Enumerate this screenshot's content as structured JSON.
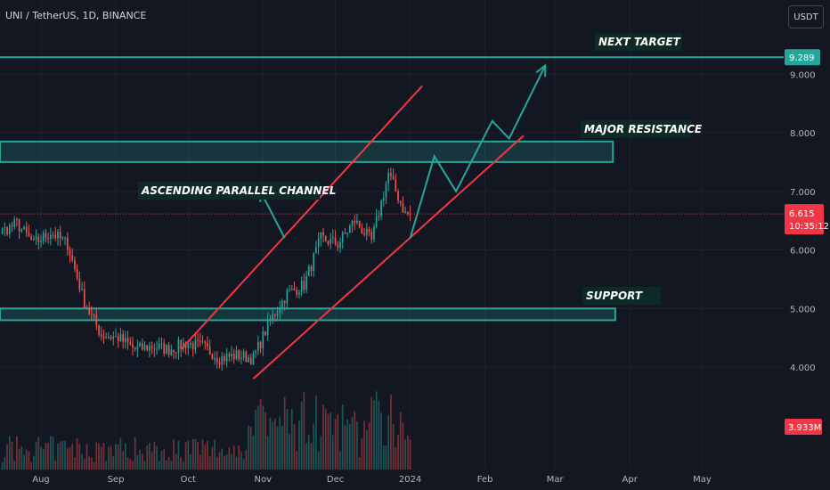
{
  "header": {
    "symbol_title": "UNI / TetherUS, 1D, BINANCE",
    "currency_button": "USDT"
  },
  "colors": {
    "background": "#131722",
    "up": "#26a69a",
    "down": "#ef5350",
    "zone": "#26a69a",
    "channel": "#f23645",
    "projection": "#26a69a"
  },
  "price_axis": {
    "ticks": [
      "9.000",
      "8.000",
      "7.000",
      "6.000",
      "5.000",
      "4.000"
    ],
    "target_label": "9.289",
    "last_price_label": "6.615",
    "countdown_label": "10:35:12",
    "volume_label": "3.933M"
  },
  "time_axis": {
    "labels": [
      "Aug",
      "Sep",
      "Oct",
      "Nov",
      "Dec",
      "2024",
      "Feb",
      "Mar",
      "Apr",
      "May"
    ]
  },
  "annotations": {
    "next_target": "NEXT TARGET",
    "major_resistance": "MAJOR RESISTANCE",
    "ascending_channel": "ASCENDING PARALLEL CHANNEL",
    "support": "SUPPORT"
  },
  "chart_data": {
    "type": "candlestick",
    "symbol": "UNI / TetherUS",
    "interval": "1D",
    "exchange": "BINANCE",
    "quote_currency": "USDT",
    "ylim": [
      3.3,
      9.8
    ],
    "last_price": 6.615,
    "last_volume": "3.933M",
    "levels": [
      {
        "label": "NEXT TARGET",
        "price": 9.289
      },
      {
        "label": "MAJOR RESISTANCE",
        "range": [
          7.5,
          7.85
        ]
      },
      {
        "label": "SUPPORT",
        "range": [
          4.8,
          5.0
        ]
      }
    ],
    "channel": {
      "upper": [
        [
          "2023-09-28",
          4.3
        ],
        [
          "2024-01-06",
          8.8
        ]
      ],
      "lower": [
        [
          "2023-10-28",
          3.8
        ],
        [
          "2024-02-17",
          7.95
        ]
      ]
    },
    "projection_path": [
      [
        "2024-01-01",
        6.2
      ],
      [
        "2024-01-11",
        7.6
      ],
      [
        "2024-01-20",
        7.0
      ],
      [
        "2024-02-04",
        8.2
      ],
      [
        "2024-02-11",
        7.9
      ],
      [
        "2024-02-26",
        9.15
      ]
    ],
    "weekly_closes": [
      {
        "date": "2023-07-01",
        "close": 6.1
      },
      {
        "date": "2023-07-08",
        "close": 5.95
      },
      {
        "date": "2023-07-15",
        "close": 6.3
      },
      {
        "date": "2023-07-22",
        "close": 6.45
      },
      {
        "date": "2023-07-29",
        "close": 6.1
      },
      {
        "date": "2023-08-05",
        "close": 6.3
      },
      {
        "date": "2023-08-12",
        "close": 6.1
      },
      {
        "date": "2023-08-19",
        "close": 5.1
      },
      {
        "date": "2023-08-26",
        "close": 4.55
      },
      {
        "date": "2023-09-02",
        "close": 4.5
      },
      {
        "date": "2023-09-09",
        "close": 4.3
      },
      {
        "date": "2023-09-16",
        "close": 4.35
      },
      {
        "date": "2023-09-23",
        "close": 4.3
      },
      {
        "date": "2023-09-30",
        "close": 4.4
      },
      {
        "date": "2023-10-07",
        "close": 4.35
      },
      {
        "date": "2023-10-14",
        "close": 4.15
      },
      {
        "date": "2023-10-21",
        "close": 4.2
      },
      {
        "date": "2023-10-28",
        "close": 4.15
      },
      {
        "date": "2023-11-04",
        "close": 4.8
      },
      {
        "date": "2023-11-11",
        "close": 5.25
      },
      {
        "date": "2023-11-18",
        "close": 5.4
      },
      {
        "date": "2023-11-25",
        "close": 6.2
      },
      {
        "date": "2023-12-02",
        "close": 6.1
      },
      {
        "date": "2023-12-09",
        "close": 6.5
      },
      {
        "date": "2023-12-16",
        "close": 6.15
      },
      {
        "date": "2023-12-23",
        "close": 7.3
      },
      {
        "date": "2023-12-30",
        "close": 6.615
      }
    ]
  }
}
